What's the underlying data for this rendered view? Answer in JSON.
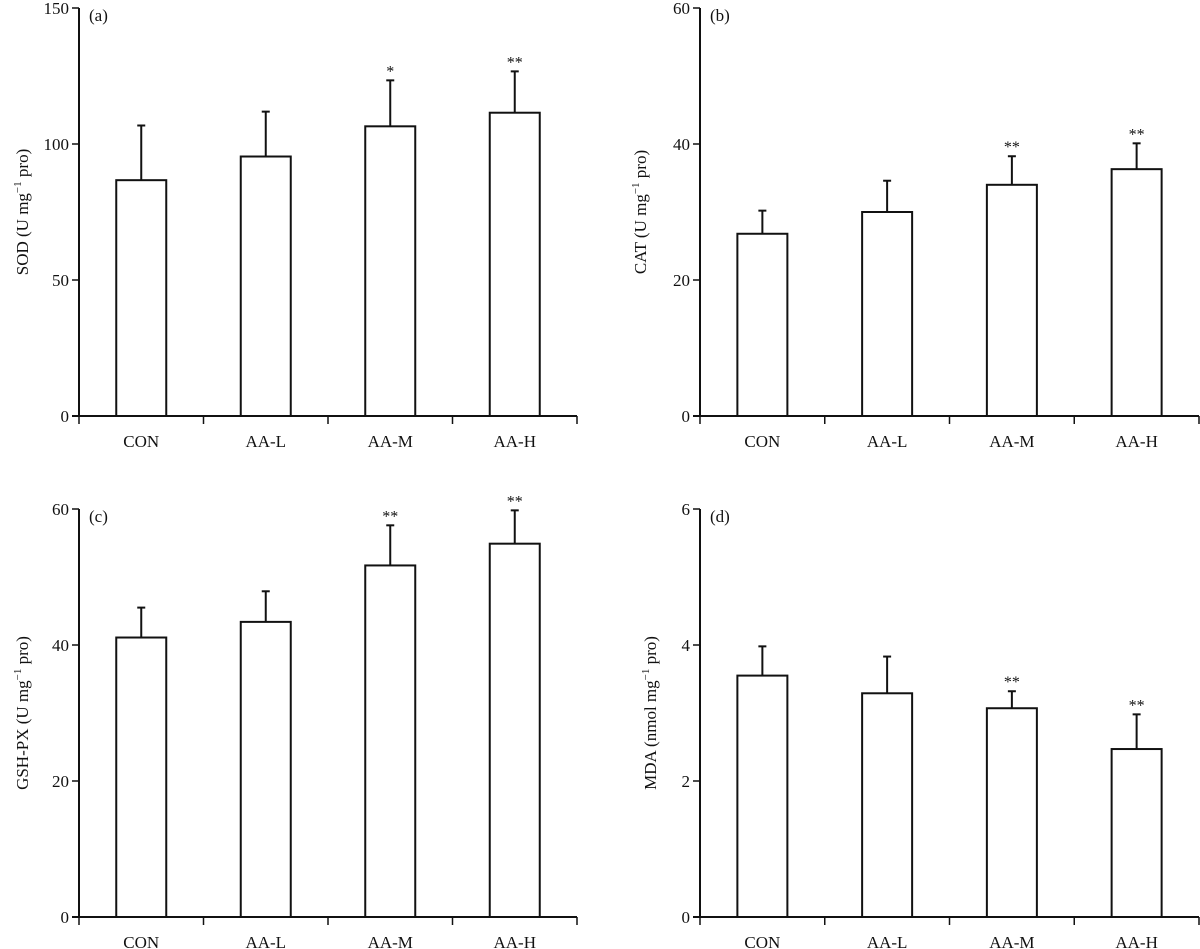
{
  "chart_data": [
    {
      "type": "bar",
      "panel_label": "(a)",
      "ylabel": {
        "main": "SOD (U mg",
        "sup": "−1",
        "tail": " pro)"
      },
      "categories": [
        "CON",
        "AA-L",
        "AA-M",
        "AA-H"
      ],
      "values": [
        86.7,
        95.4,
        106.5,
        111.5
      ],
      "error_upper": [
        106.8,
        111.9,
        123.4,
        126.7
      ],
      "significance": [
        "",
        "",
        "*",
        "**"
      ],
      "ylim": [
        0,
        150
      ],
      "yticks": [
        0,
        50,
        100,
        150
      ],
      "grid": false
    },
    {
      "type": "bar",
      "panel_label": "(b)",
      "ylabel": {
        "main": "CAT (U mg",
        "sup": "−1",
        "tail": " pro)"
      },
      "categories": [
        "CON",
        "AA-L",
        "AA-M",
        "AA-H"
      ],
      "values": [
        26.8,
        30.0,
        34.0,
        36.3
      ],
      "error_upper": [
        30.2,
        34.6,
        38.2,
        40.1
      ],
      "significance": [
        "",
        "",
        "**",
        "**"
      ],
      "ylim": [
        0,
        60
      ],
      "yticks": [
        0,
        20,
        40,
        60
      ],
      "grid": false
    },
    {
      "type": "bar",
      "panel_label": "(c)",
      "ylabel": {
        "main": "GSH-PX (U mg",
        "sup": "−1",
        "tail": " pro)"
      },
      "categories": [
        "CON",
        "AA-L",
        "AA-M",
        "AA-H"
      ],
      "values": [
        41.1,
        43.4,
        51.7,
        54.9
      ],
      "error_upper": [
        45.5,
        47.9,
        57.6,
        59.8
      ],
      "significance": [
        "",
        "",
        "**",
        "**"
      ],
      "ylim": [
        0,
        60
      ],
      "yticks": [
        0,
        20,
        40,
        60
      ],
      "grid": false
    },
    {
      "type": "bar",
      "panel_label": "(d)",
      "ylabel": {
        "main": "MDA (nmol mg",
        "sup": "−1",
        "tail": " pro)"
      },
      "categories": [
        "CON",
        "AA-L",
        "AA-M",
        "AA-H"
      ],
      "values": [
        3.55,
        3.29,
        3.07,
        2.47
      ],
      "error_upper": [
        3.98,
        3.83,
        3.32,
        2.98
      ],
      "significance": [
        "",
        "",
        "**",
        "**"
      ],
      "ylim": [
        0,
        6
      ],
      "yticks": [
        0,
        2,
        4,
        6
      ],
      "grid": false
    }
  ],
  "colors": {
    "bar_fill": "#ffffff",
    "stroke": "#111111"
  }
}
